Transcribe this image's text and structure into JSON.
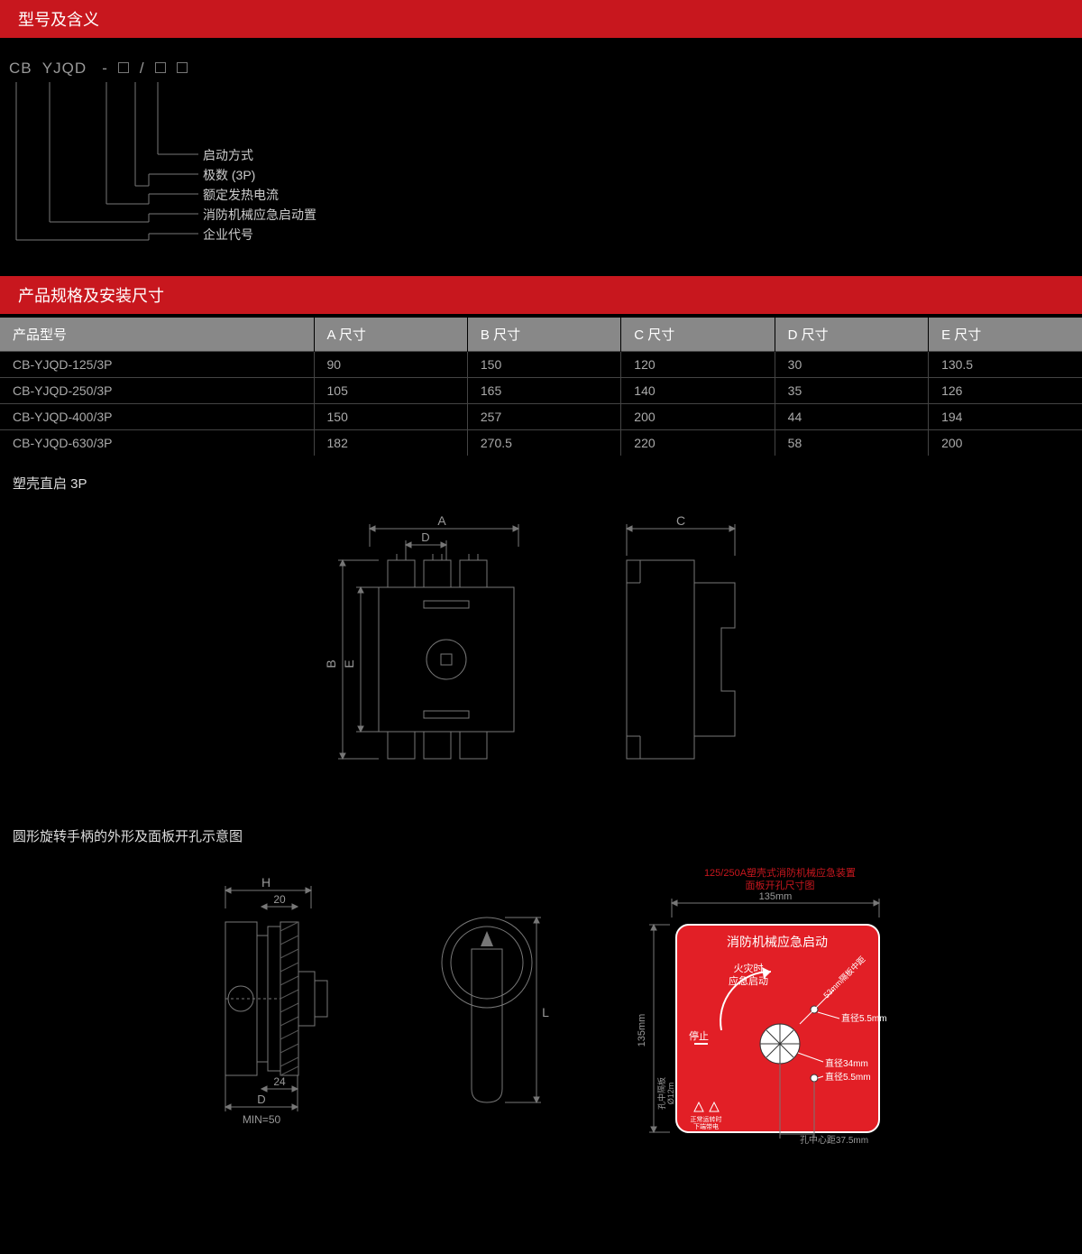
{
  "colors": {
    "red": "#c8171e",
    "grey_header": "#888888",
    "line": "#777777",
    "text_light": "#cccccc",
    "text_dim": "#aaaaaa",
    "panel_red": "#e21f26",
    "black": "#000000",
    "white": "#ffffff"
  },
  "section1_title": "型号及含义",
  "model_parts": [
    "CB",
    "YJQD",
    "-",
    "□",
    "/",
    "□",
    "□"
  ],
  "bracket_labels": [
    "启动方式",
    "极数 (3P)",
    "额定发热电流",
    "消防机械应急启动置",
    "企业代号"
  ],
  "section2_title": "产品规格及安装尺寸",
  "table": {
    "columns": [
      "产品型号",
      "A 尺寸",
      "B 尺寸",
      "C 尺寸",
      "D 尺寸",
      "E 尺寸"
    ],
    "rows": [
      [
        "CB-YJQD-125/3P",
        "90",
        "150",
        "120",
        "30",
        "130.5"
      ],
      [
        "CB-YJQD-250/3P",
        "105",
        "165",
        "140",
        "35",
        "126"
      ],
      [
        "CB-YJQD-400/3P",
        "150",
        "257",
        "200",
        "44",
        "194"
      ],
      [
        "CB-YJQD-630/3P",
        "182",
        "270.5",
        "220",
        "58",
        "200"
      ]
    ]
  },
  "diagram1_title": "塑壳直启 3P",
  "diagram1": {
    "labels": {
      "A": "A",
      "B": "B",
      "C": "C",
      "D": "D",
      "E": "E"
    }
  },
  "diagram2_title": "圆形旋转手柄的外形及面板开孔示意图",
  "diagram2": {
    "labels": {
      "H": "H",
      "D": "D",
      "L": "L",
      "n20": "20",
      "n24": "24",
      "min50": "MIN=50"
    }
  },
  "panel": {
    "header1": "125/250A塑壳式消防机械应急装置",
    "header2": "面板开孔尺寸图",
    "dim_w": "135mm",
    "dim_h": "135mm",
    "title": "消防机械应急启动",
    "fire_line1": "火灾时",
    "fire_line2": "应急启动",
    "stop": "停止",
    "diag53": "53mm隔板中距",
    "d55a": "直径5.5mm",
    "d34": "直径34mm",
    "d55b": "直径5.5mm",
    "left_sub1": "孔中隔板",
    "left_sub2": "Ø12m",
    "bottom_note": "孔中心距37.5mm"
  }
}
